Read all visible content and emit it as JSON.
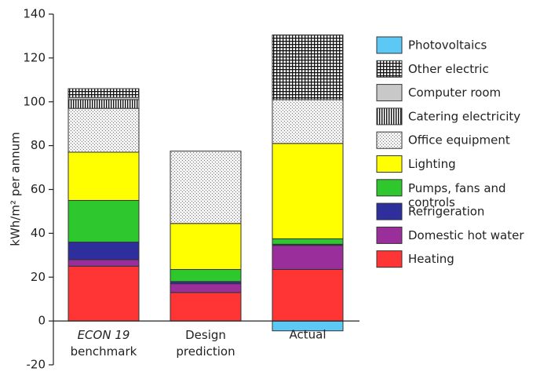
{
  "chart_data": {
    "type": "stacked-bar",
    "y_label": "kWh/m² per annum",
    "categories": [
      "ECON 19\nbenchmark",
      "Design\nprediction",
      "Actual"
    ],
    "ylim": [
      -20,
      140
    ],
    "yticks": [
      -20,
      0,
      20,
      40,
      60,
      80,
      100,
      120,
      140
    ],
    "series": [
      {
        "name": "Photovoltaics",
        "color": "#5cc8f6",
        "values": [
          0,
          0,
          -4.5
        ]
      },
      {
        "name": "Heating",
        "color": "#ff3535",
        "values": [
          25,
          13,
          23.5
        ]
      },
      {
        "name": "Domestic hot water",
        "color": "#9a2e9a",
        "values": [
          3,
          4,
          11
        ]
      },
      {
        "name": "Refrigeration",
        "color": "#2e2e9c",
        "values": [
          8,
          1,
          0.5
        ]
      },
      {
        "name": "Pumps, fans and\ncontrols",
        "color": "#2ec72e",
        "values": [
          19,
          5.5,
          2.5
        ]
      },
      {
        "name": "Lighting",
        "color": "#ffff00",
        "values": [
          22,
          21,
          43.5
        ]
      },
      {
        "name": "Office equipment",
        "color": "#f0f0f0",
        "pattern": "dots",
        "values": [
          20,
          33,
          20
        ]
      },
      {
        "name": "Catering electricity",
        "color": "#ffffff",
        "pattern": "vlines",
        "values": [
          4,
          0,
          0
        ]
      },
      {
        "name": "Computer room",
        "color": "#c8c8c8",
        "values": [
          1,
          0,
          0
        ]
      },
      {
        "name": "Other electric",
        "color": "#ffffff",
        "pattern": "grid",
        "values": [
          4,
          0,
          29.5
        ]
      }
    ]
  }
}
